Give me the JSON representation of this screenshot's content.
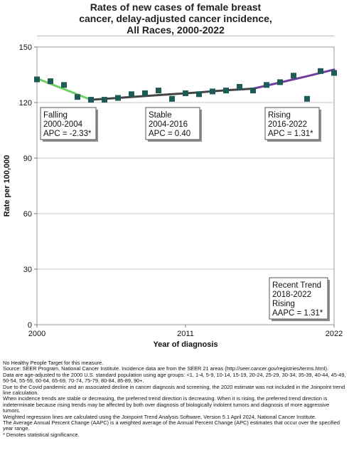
{
  "title_lines": [
    "Rates of new cases of female breast",
    "cancer, delay-adjusted cancer incidence,",
    "All Races,  2000-2022"
  ],
  "colors": {
    "falling": "#6fcf63",
    "stable": "#444444",
    "rising": "#6f3fa0",
    "point": "#1e5a56",
    "grid": "#c8c8c8"
  },
  "chart_data": {
    "type": "line",
    "xlabel": "Year of diagnosis",
    "ylabel": "Rate per 100,000",
    "xlim": [
      2000,
      2022
    ],
    "ylim": [
      0,
      150
    ],
    "x_ticks": [
      2000,
      2011,
      2022
    ],
    "y_ticks": [
      0,
      30,
      60,
      90,
      120,
      150
    ],
    "grid": "horizontal",
    "observed": {
      "x": [
        2000,
        2001,
        2002,
        2003,
        2004,
        2005,
        2006,
        2007,
        2008,
        2009,
        2010,
        2011,
        2012,
        2013,
        2014,
        2015,
        2016,
        2017,
        2018,
        2019,
        2020,
        2021,
        2022
      ],
      "y": [
        132.5,
        131.5,
        129.5,
        123.0,
        121.5,
        121.5,
        122.5,
        124.5,
        125.0,
        126.5,
        122.0,
        125.0,
        124.5,
        126.0,
        126.5,
        128.5,
        126.5,
        129.5,
        131.0,
        134.5,
        122.0,
        137.0,
        136.0
      ]
    },
    "trend_segments": [
      {
        "label": "Falling",
        "period": "2000-2004",
        "apc": "APC = -2.33*",
        "x": [
          2000,
          2004
        ],
        "y": [
          133.0,
          121.5
        ]
      },
      {
        "label": "Stable",
        "period": "2004-2016",
        "apc": "APC =  0.40",
        "x": [
          2004,
          2006,
          2008,
          2010,
          2012,
          2014,
          2016
        ],
        "y": [
          121.5,
          122.5,
          123.5,
          124.5,
          125.5,
          126.6,
          127.5
        ]
      },
      {
        "label": "Rising",
        "period": "2016-2022",
        "apc": "APC =  1.31*",
        "x": [
          2016,
          2018,
          2020,
          2022
        ],
        "y": [
          127.5,
          130.8,
          134.2,
          137.8
        ]
      }
    ],
    "recent_trend": {
      "heading": "Recent Trend",
      "period": "2018-2022",
      "label": "Rising",
      "aapc": "AAPC =  1.31*"
    }
  },
  "footnotes": [
    "No Healthy People Target for this measure.",
    "Source: SEER Program, National Cancer Institute. Incidence data are from the SEER 21 areas (http://seer.cancer.gov/registries/terms.html).",
    "Data are age-adjusted to the 2000 U.S. standard population using age groups: <1, 1-4, 5-9, 10-14, 15-19, 20-24, 25-29, 30-34, 35-39, 40-44, 45-49, 50-54, 55-59, 60-64, 65-69, 70-74, 75-79, 80-84, 85-89, 90+.",
    "Due to the Covid pandemic and an associated decline in cancer diagnosis and screening, the 2020 estimate was not included in the Joinpoint trend line calculation.",
    "When incidence trends are stable or decreasing, the preferred trend direction is decreasing. When it is rising, the preferred trend direction is indeterminate because rising trends may be affected by both over diagnosis of biologically indolent tumors and diagnosis of more aggressive tumors.",
    "Weighted regression lines are calculated using the Joinpoint Trend Analysis Software, Version 5.1 April 2024, National Cancer Institute.",
    "The Average Annual Percent Change (AAPC) is a weighted average of the Annual Percent Change (APC) estimates that occur over the specified year range.",
    "* Denotes statistical significance."
  ]
}
